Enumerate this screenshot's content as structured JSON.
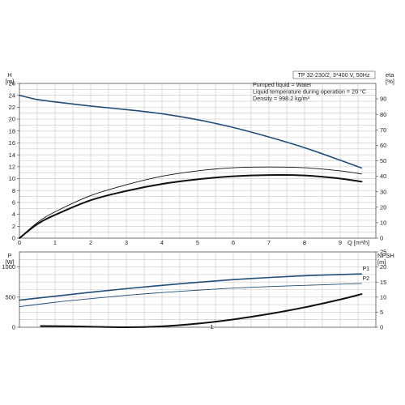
{
  "chart_data": [
    {
      "type": "line",
      "title": "TP 32-230/2, 3*400 V, 50Hz",
      "annotations": [
        "Pumped liquid = Water",
        "Liquid temperature during operation = 20 °C",
        "Density = 998.2 kg/m³"
      ],
      "xlabel": "Q [m³/h]",
      "ylabel_left": "H\n[m]",
      "ylabel_right": "eta\n[%]",
      "xlim": [
        0,
        10
      ],
      "ylim_left": [
        0,
        26
      ],
      "ylim_right": [
        0,
        100
      ],
      "x_ticks": [
        0,
        1,
        2,
        3,
        4,
        5,
        6,
        7,
        8,
        9
      ],
      "y_ticks_left": [
        0,
        2,
        4,
        6,
        8,
        10,
        12,
        14,
        16,
        18,
        20,
        22,
        24,
        26
      ],
      "y_ticks_right": [
        0,
        10,
        20,
        30,
        40,
        50,
        60,
        70,
        80,
        90
      ],
      "grid": true,
      "series": [
        {
          "axis": "left",
          "color": "#1f4e79",
          "width": 1.6,
          "x": [
            0,
            0.5,
            1,
            2,
            3,
            4,
            5,
            6,
            7,
            8,
            9,
            9.6
          ],
          "y": [
            24.0,
            23.3,
            22.9,
            22.2,
            21.6,
            20.9,
            19.9,
            18.6,
            17.0,
            15.2,
            13.1,
            11.8
          ]
        },
        {
          "axis": "right",
          "color": "#111111",
          "width": 0.9,
          "x": [
            0,
            0.5,
            1,
            2,
            3,
            4,
            5,
            6,
            7,
            8,
            9,
            9.6
          ],
          "y": [
            0,
            10,
            17,
            27.5,
            34.5,
            40,
            43.5,
            45.5,
            46,
            45.5,
            43.5,
            41.5
          ]
        },
        {
          "axis": "right",
          "color": "#111111",
          "width": 2.0,
          "x": [
            0,
            0.5,
            1,
            2,
            3,
            4,
            5,
            6,
            7,
            8,
            9,
            9.6
          ],
          "y": [
            0,
            9,
            15,
            24.5,
            30.5,
            35,
            38,
            40,
            40.8,
            40.5,
            38.5,
            36.5
          ]
        }
      ]
    },
    {
      "type": "line",
      "xlim": [
        0,
        10
      ],
      "ylabel_left": "P\n[W]",
      "ylabel_right": "NPSH\n[m]",
      "ylim_left": [
        0,
        1250
      ],
      "ylim_right": [
        0,
        25
      ],
      "y_ticks_left": [
        0,
        500,
        1000
      ],
      "y_ticks_right": [
        0,
        5,
        10,
        15,
        20,
        25
      ],
      "grid": true,
      "series": [
        {
          "name": "P1",
          "axis": "left",
          "color": "#1f4e79",
          "width": 1.6,
          "x": [
            0,
            1,
            2,
            3,
            4,
            5,
            6,
            7,
            8,
            9,
            9.6
          ],
          "y": [
            450,
            515,
            580,
            640,
            695,
            745,
            790,
            825,
            855,
            875,
            885
          ]
        },
        {
          "name": "P2",
          "axis": "left",
          "color": "#1f4e79",
          "width": 0.9,
          "x": [
            0,
            1,
            2,
            3,
            4,
            5,
            6,
            7,
            8,
            9,
            9.6
          ],
          "y": [
            340,
            415,
            475,
            530,
            575,
            615,
            650,
            675,
            695,
            715,
            725
          ]
        },
        {
          "axis": "right",
          "color": "#111111",
          "width": 2.0,
          "x": [
            0.6,
            1.5,
            3.0,
            4.0,
            5.0,
            6.0,
            7.0,
            8.0,
            9.0,
            9.6
          ],
          "y": [
            0.4,
            0.3,
            0.0,
            0.3,
            1.2,
            2.6,
            4.4,
            6.6,
            9.2,
            11.0
          ]
        }
      ],
      "markers": [
        {
          "text": "1",
          "x": 5.4,
          "y": 0
        }
      ]
    }
  ]
}
